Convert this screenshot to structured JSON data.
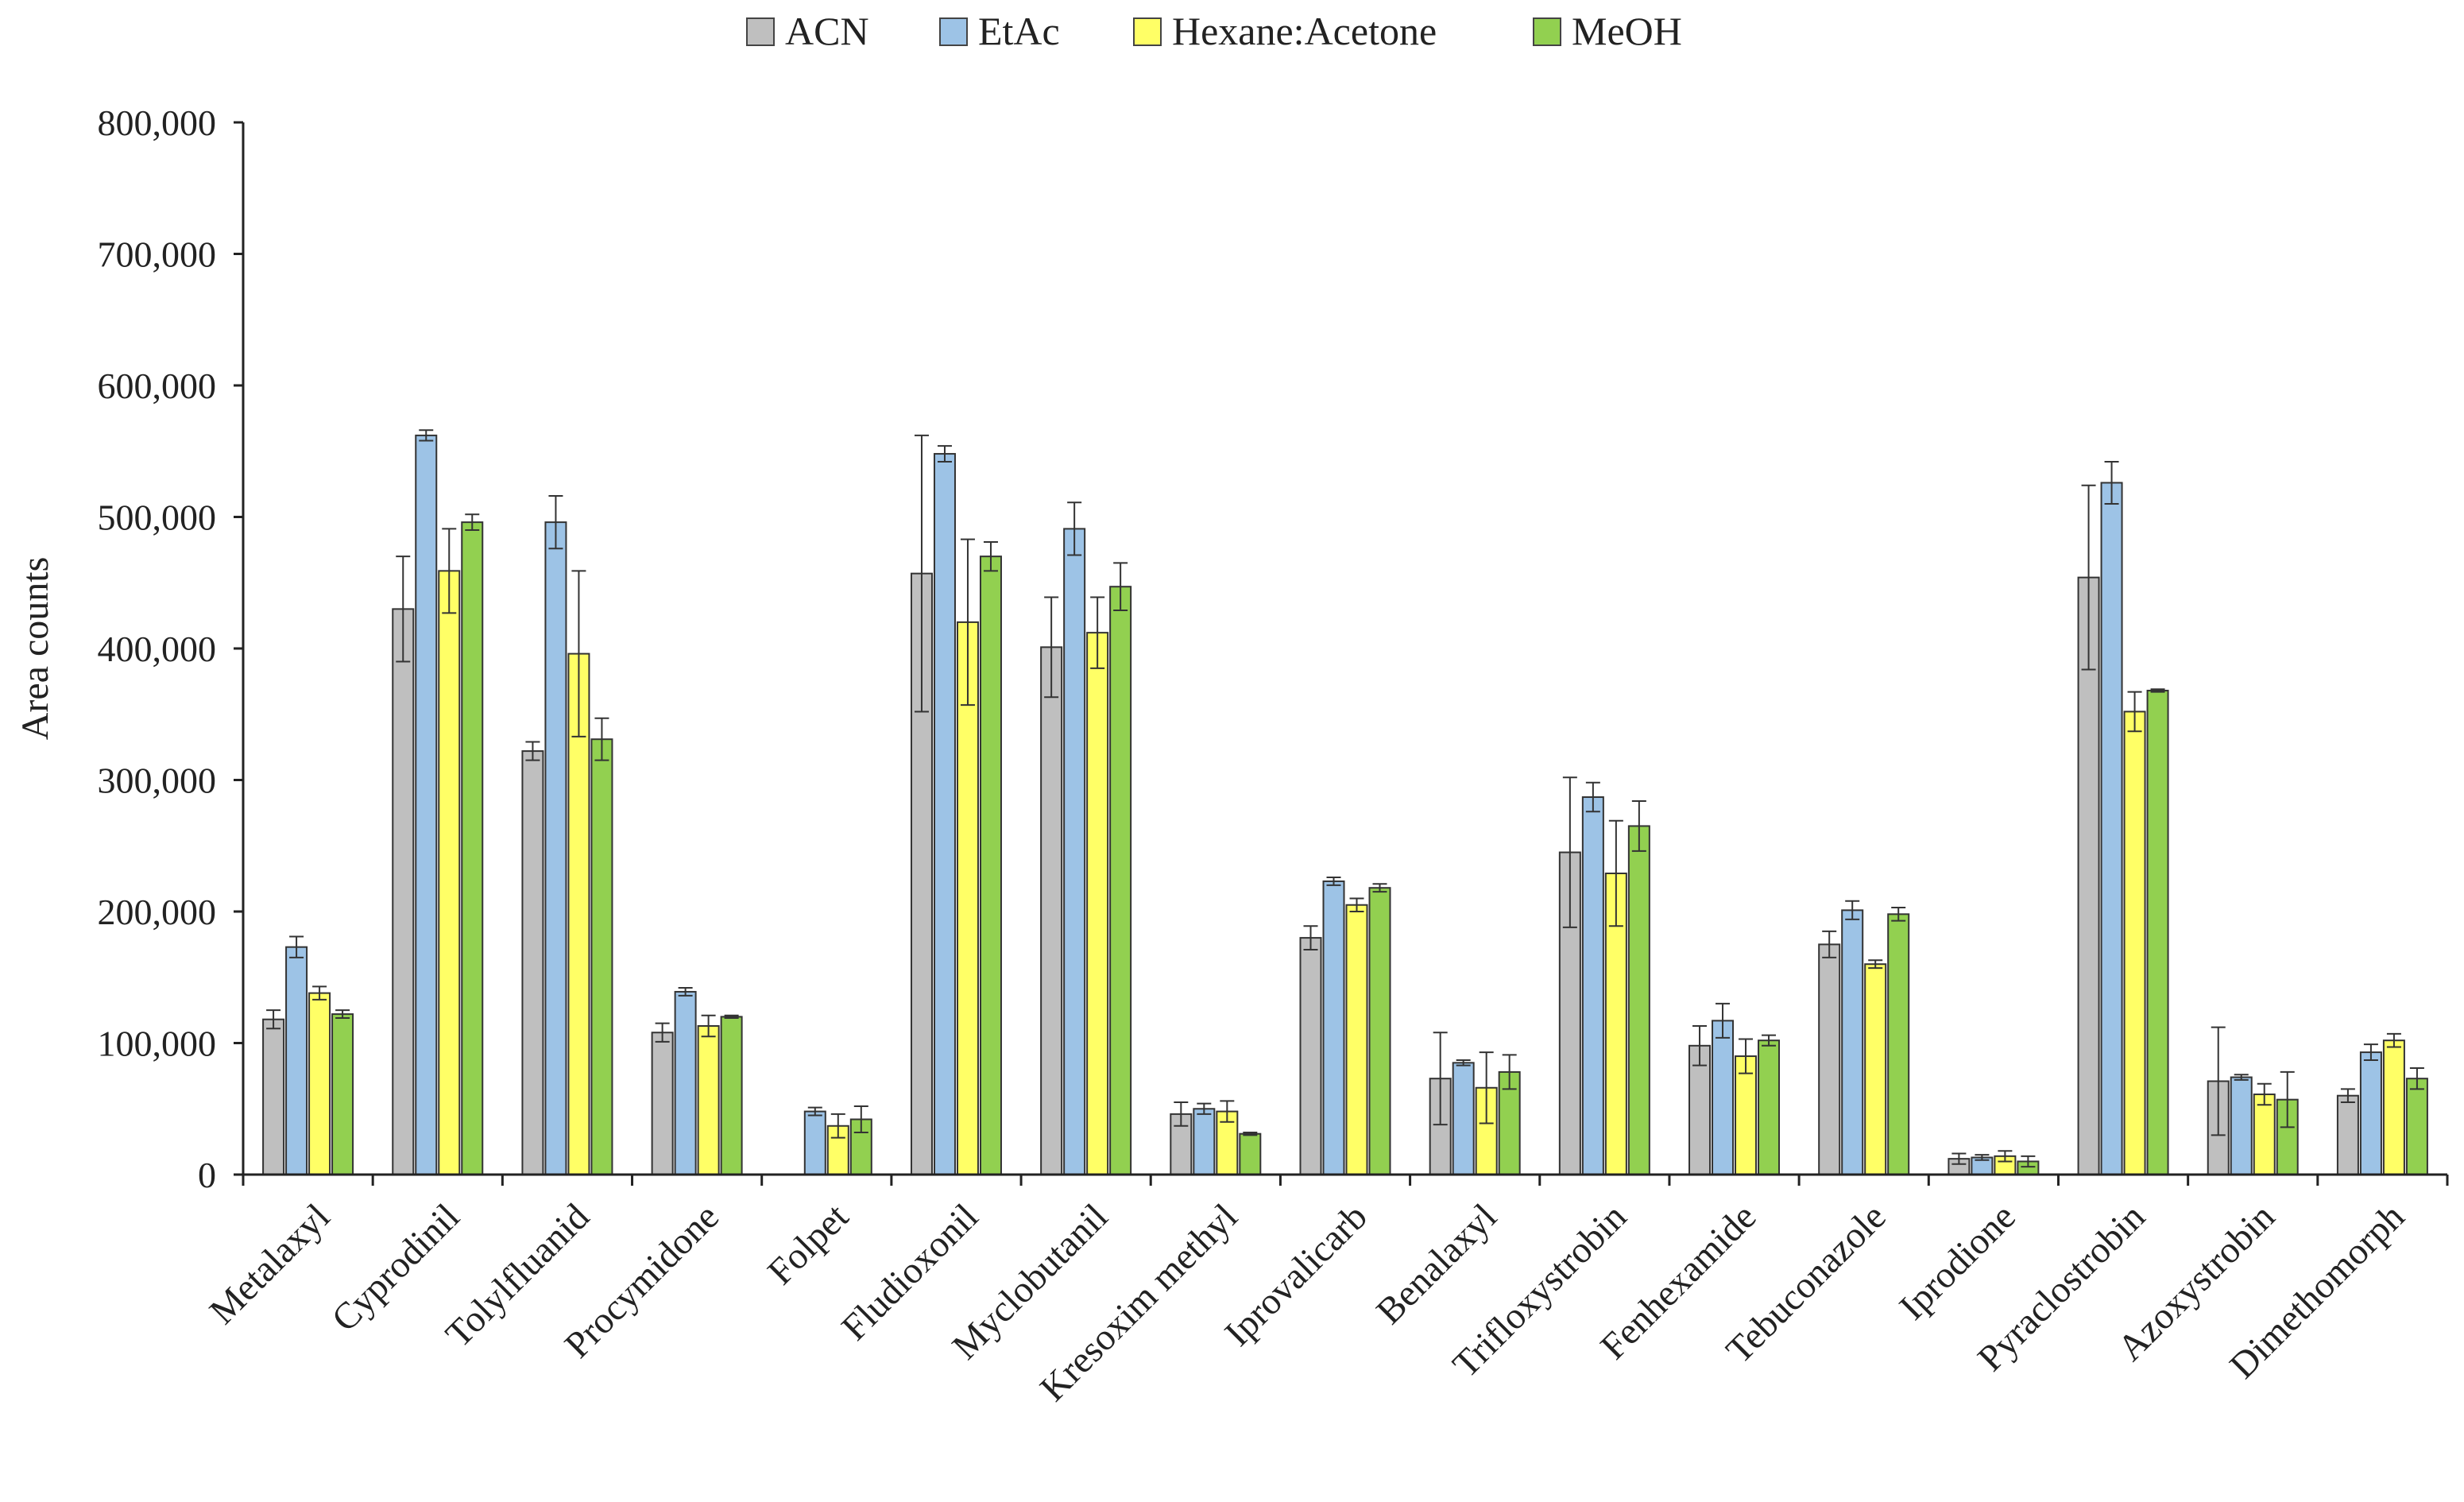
{
  "chart_data": {
    "type": "bar",
    "title": "",
    "xlabel": "",
    "ylabel": "Area counts",
    "ylim": [
      0,
      800000
    ],
    "yticks": [
      0,
      100000,
      200000,
      300000,
      400000,
      500000,
      600000,
      700000,
      800000
    ],
    "ytick_labels": [
      "0",
      "100,000",
      "200,000",
      "300,000",
      "400,000",
      "500,000",
      "600,000",
      "700,000",
      "800,000"
    ],
    "grid": false,
    "legend_position": "top-center",
    "error_bars": true,
    "categories": [
      "Metalaxyl",
      "Cyprodinil",
      "Tolylfluanid",
      "Procymidone",
      "Folpet",
      "Fludioxonil",
      "Myclobutanil",
      "Kresoxim methyl",
      "Iprovalicarb",
      "Benalaxyl",
      "Trifloxystrobin",
      "Fenhexamide",
      "Tebuconazole",
      "Iprodione",
      "Pyraclostrobin",
      "Azoxystrobin",
      "Dimethomorph"
    ],
    "series": [
      {
        "name": "ACN",
        "color": "#bfbfbf",
        "values": [
          118000,
          430000,
          322000,
          108000,
          0,
          457000,
          401000,
          46000,
          180000,
          73000,
          245000,
          98000,
          175000,
          12000,
          454000,
          71000,
          60000
        ],
        "errors": [
          7000,
          40000,
          7000,
          7000,
          0,
          105000,
          38000,
          9000,
          9000,
          35000,
          57000,
          15000,
          10000,
          4000,
          70000,
          41000,
          5000
        ]
      },
      {
        "name": "EtAc",
        "color": "#9dc3e6",
        "values": [
          173000,
          562000,
          496000,
          139000,
          48000,
          548000,
          491000,
          50000,
          223000,
          85000,
          287000,
          117000,
          201000,
          13000,
          526000,
          74000,
          93000
        ],
        "errors": [
          8000,
          4000,
          20000,
          3000,
          3000,
          6000,
          20000,
          4000,
          3000,
          2000,
          11000,
          13000,
          7000,
          2000,
          16000,
          2000,
          6000
        ]
      },
      {
        "name": "Hexane:Acetone",
        "color": "#ffff66",
        "values": [
          138000,
          459000,
          396000,
          113000,
          37000,
          420000,
          412000,
          48000,
          205000,
          66000,
          229000,
          90000,
          160000,
          14000,
          352000,
          61000,
          102000
        ],
        "errors": [
          5000,
          32000,
          63000,
          8000,
          9000,
          63000,
          27000,
          8000,
          5000,
          27000,
          40000,
          13000,
          3000,
          4000,
          15000,
          8000,
          5000
        ]
      },
      {
        "name": "MeOH",
        "color": "#92d050",
        "values": [
          122000,
          496000,
          331000,
          120000,
          42000,
          470000,
          447000,
          31000,
          218000,
          78000,
          265000,
          102000,
          198000,
          10000,
          368000,
          57000,
          73000
        ],
        "errors": [
          3000,
          6000,
          16000,
          1000,
          10000,
          11000,
          18000,
          1000,
          3000,
          13000,
          19000,
          4000,
          5000,
          4000,
          1000,
          21000,
          8000
        ]
      }
    ]
  }
}
